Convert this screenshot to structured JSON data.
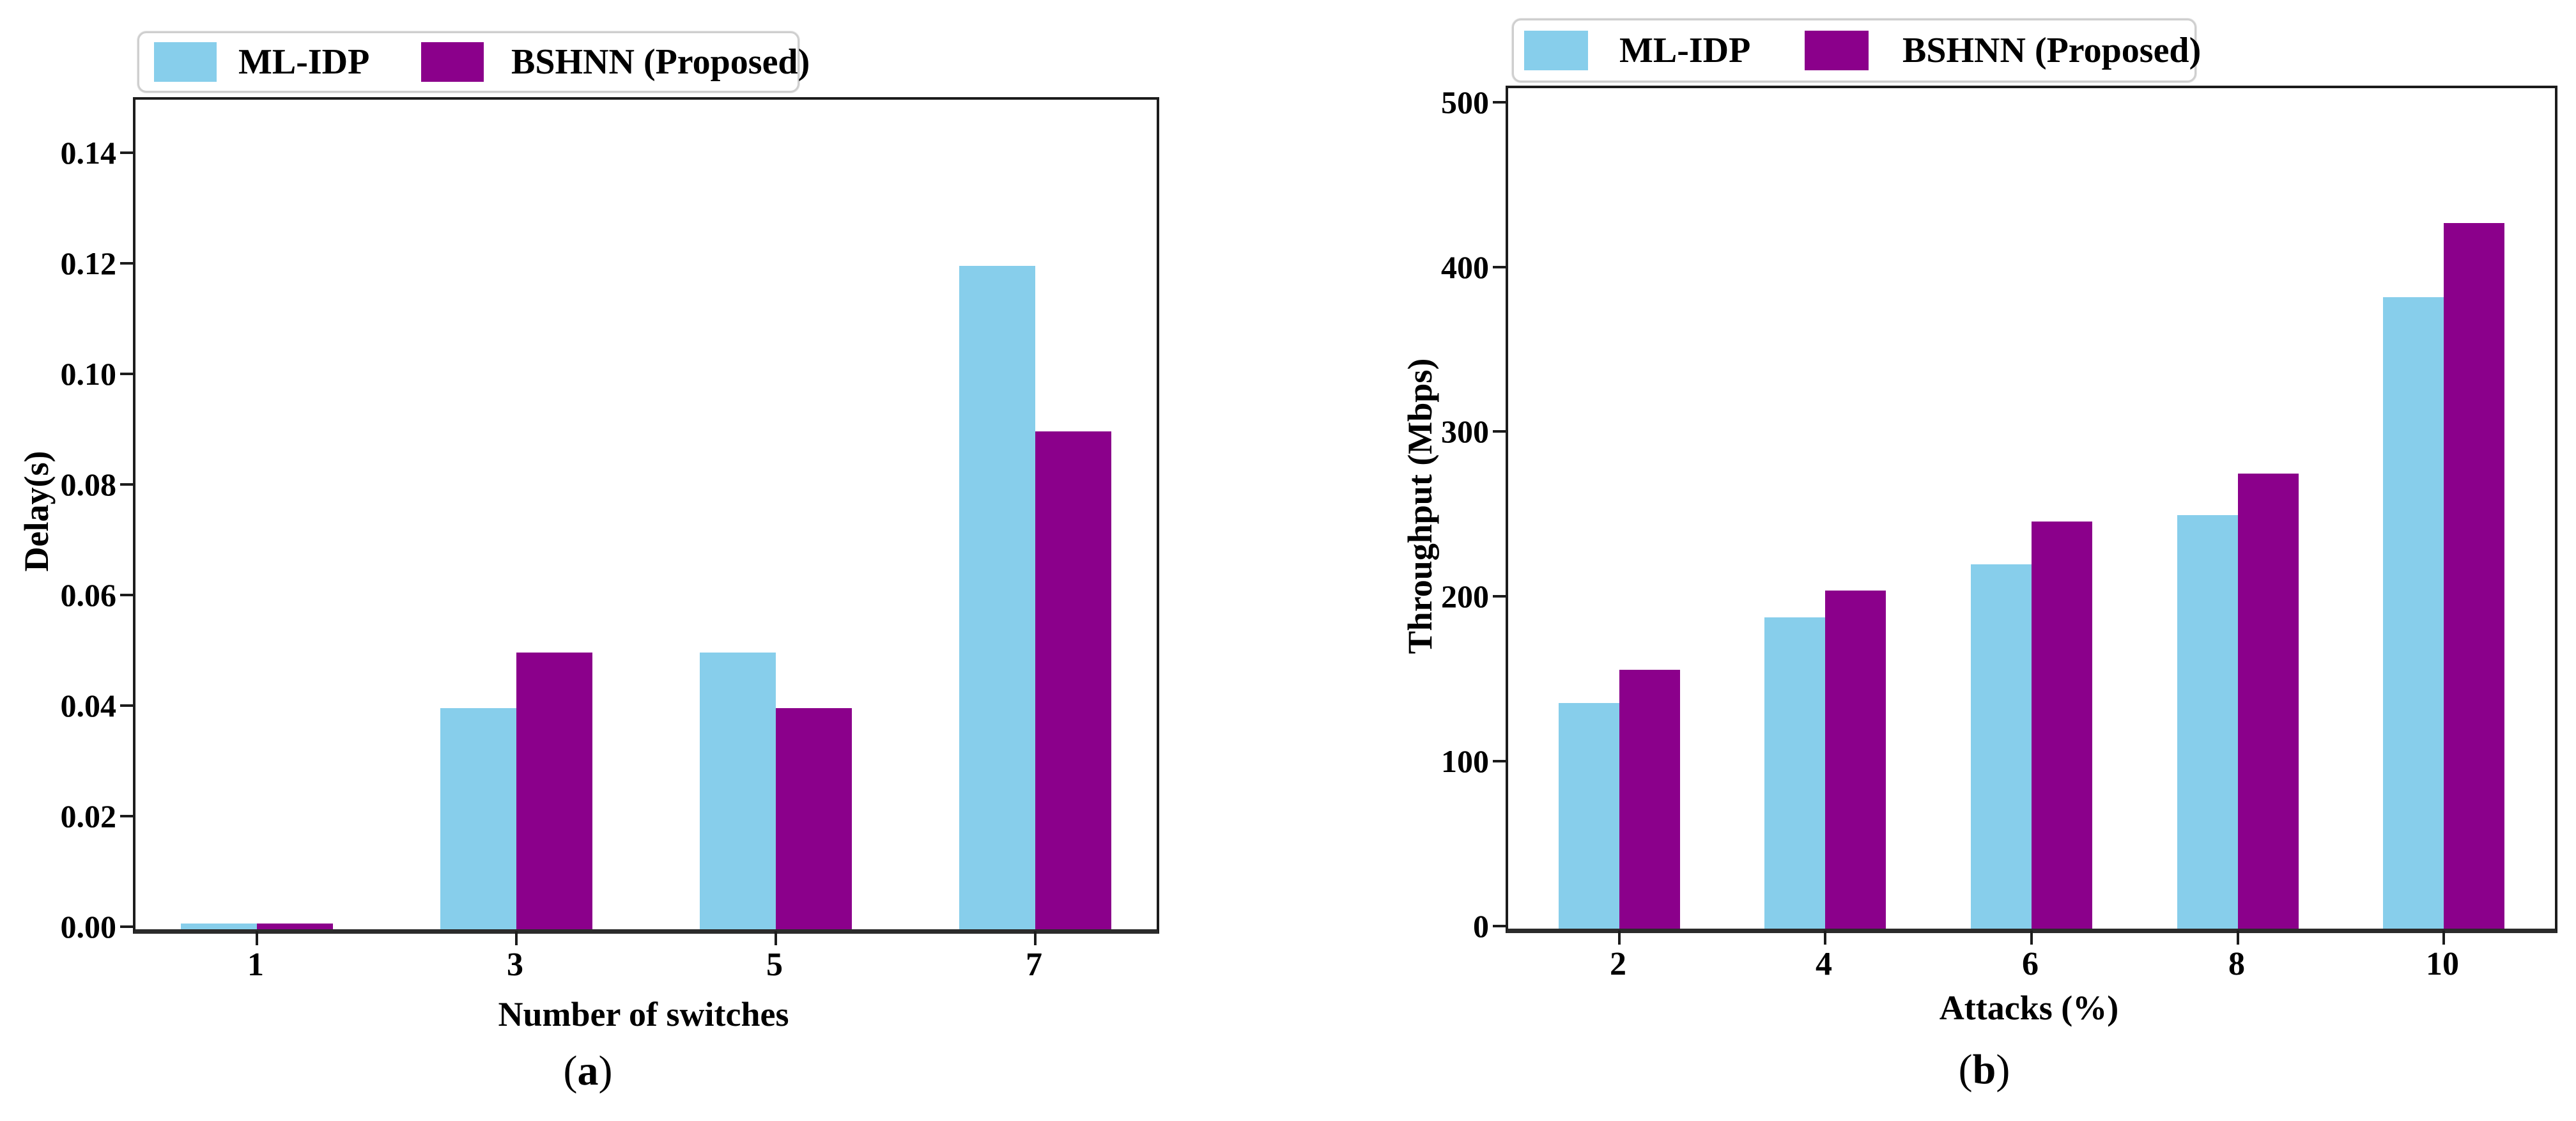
{
  "figure": {
    "background": "#ffffff",
    "series_colors": {
      "ml_idp": "#87CEEB",
      "bshnn": "#8B008B"
    },
    "captions": [
      {
        "open": "(",
        "letter": "a",
        "close": ")"
      },
      {
        "open": "(",
        "letter": "b",
        "close": ")"
      }
    ]
  },
  "chart_data": [
    {
      "type": "bar",
      "panel": "a",
      "title": "",
      "categories": [
        "1",
        "3",
        "5",
        "7"
      ],
      "series": [
        {
          "name": "ML-IDP",
          "color": "#87CEEB",
          "values": [
            0.001,
            0.04,
            0.05,
            0.12
          ]
        },
        {
          "name": "BSHNN (Proposed)",
          "color": "#8B008B",
          "values": [
            0.001,
            0.05,
            0.04,
            0.09
          ]
        }
      ],
      "xlabel": "Number of switches",
      "ylabel": "Delay(s)",
      "ylim": [
        0,
        0.15
      ],
      "yticks": [
        0,
        0.02,
        0.04,
        0.06,
        0.08,
        0.1,
        0.12,
        0.14
      ],
      "ytick_labels": [
        "0.00",
        "0.02",
        "0.04",
        "0.06",
        "0.08",
        "0.10",
        "0.12",
        "0.14"
      ],
      "grid": false,
      "legend_position": "upper-left-outside"
    },
    {
      "type": "bar",
      "panel": "b",
      "title": "",
      "categories": [
        "2",
        "4",
        "6",
        "8",
        "10"
      ],
      "series": [
        {
          "name": "ML-IDP",
          "color": "#87CEEB",
          "values": [
            137,
            189,
            221,
            251,
            383
          ]
        },
        {
          "name": "BSHNN (Proposed)",
          "color": "#8B008B",
          "values": [
            157,
            205,
            247,
            276,
            428
          ]
        }
      ],
      "xlabel": "Attacks (%)",
      "ylabel": "Throughput (Mbps)",
      "ylim": [
        0,
        510
      ],
      "yticks": [
        0,
        100,
        200,
        300,
        400,
        500
      ],
      "ytick_labels": [
        "0",
        "100",
        "200",
        "300",
        "400",
        "500"
      ],
      "grid": false,
      "legend_position": "upper-left-outside"
    }
  ]
}
